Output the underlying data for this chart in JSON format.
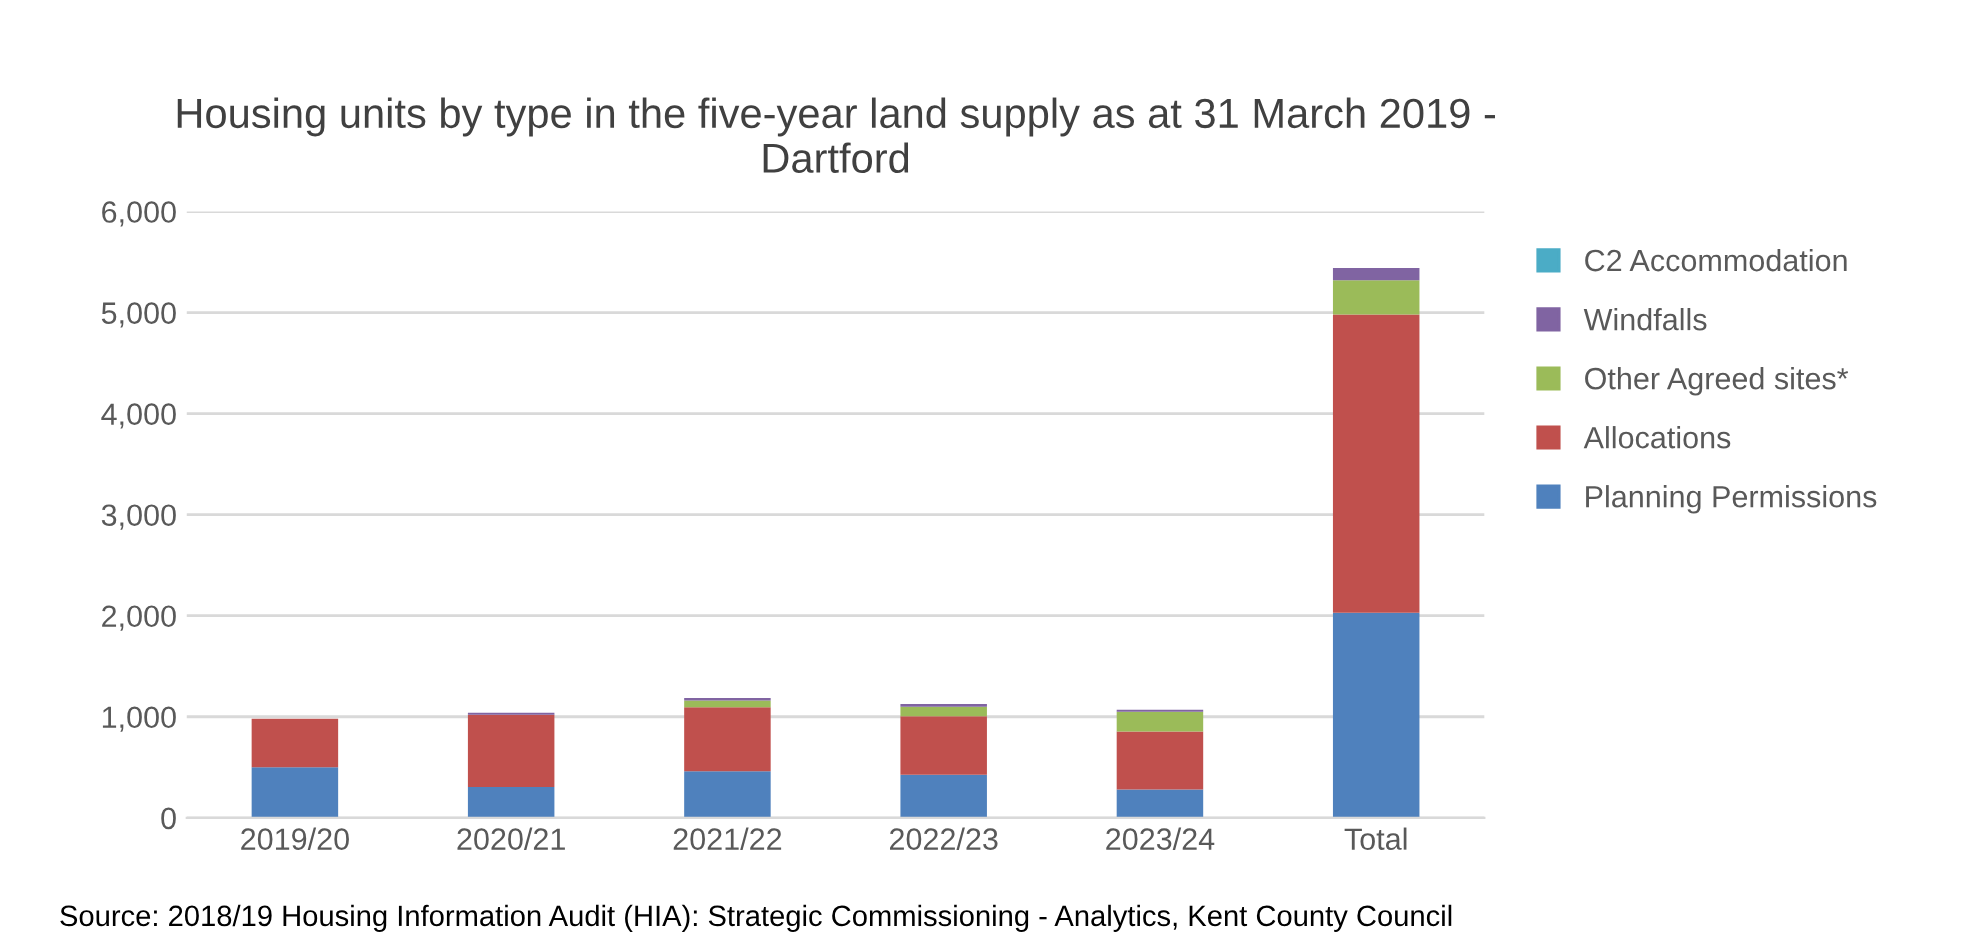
{
  "chart_data": {
    "type": "bar",
    "stacked": true,
    "title": "Housing units by type in the five-year land supply as at 31 March 2019 -\nDartford",
    "categories": [
      "2019/20",
      "2020/21",
      "2021/22",
      "2022/23",
      "2023/24",
      "Total"
    ],
    "series": [
      {
        "name": "Planning Permissions",
        "color": "#4f81bd",
        "values": [
          500,
          305,
          460,
          425,
          280,
          2030
        ]
      },
      {
        "name": "Allocations",
        "color": "#c0504d",
        "values": [
          480,
          715,
          635,
          580,
          575,
          2950
        ]
      },
      {
        "name": "Other Agreed sites*",
        "color": "#9bbb59",
        "values": [
          0,
          0,
          65,
          95,
          195,
          340
        ]
      },
      {
        "name": "Windfalls",
        "color": "#8064a2",
        "values": [
          0,
          20,
          25,
          25,
          20,
          120
        ]
      },
      {
        "name": "C2 Accommodation",
        "color": "#4bacc6",
        "values": [
          0,
          0,
          0,
          0,
          0,
          0
        ]
      }
    ],
    "ylim": [
      0,
      6000
    ],
    "yticks": [
      {
        "value": 0,
        "label": "0"
      },
      {
        "value": 1000,
        "label": "1,000"
      },
      {
        "value": 2000,
        "label": "2,000"
      },
      {
        "value": 3000,
        "label": "3,000"
      },
      {
        "value": 4000,
        "label": "4,000"
      },
      {
        "value": 5000,
        "label": "5,000"
      },
      {
        "value": 6000,
        "label": "6,000"
      }
    ],
    "grid": "y",
    "legend": "right",
    "annotations": [
      "Source: 2018/19 Housing Information Audit (HIA): Strategic Commissioning - Analytics, Kent County Council"
    ]
  }
}
